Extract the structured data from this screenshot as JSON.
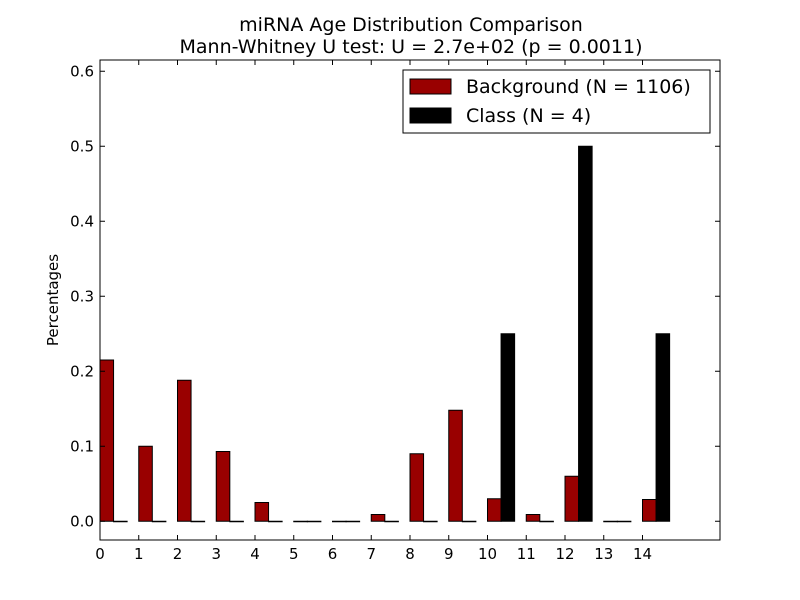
{
  "chart_data": {
    "type": "bar",
    "title": "miRNA Age Distribution Comparison",
    "subtitle": "Mann-Whitney U test: U = 2.7e+02 (p = 0.0011)",
    "xlabel": "",
    "ylabel": "Percentages",
    "categories": [
      "0",
      "1",
      "2",
      "3",
      "4",
      "5",
      "6",
      "7",
      "8",
      "9",
      "10",
      "11",
      "12",
      "13",
      "14"
    ],
    "xlim": [
      0,
      16
    ],
    "ylim": [
      -0.025,
      0.615
    ],
    "yticks": [
      "0.0",
      "0.1",
      "0.2",
      "0.3",
      "0.4",
      "0.5",
      "0.6"
    ],
    "grid": false,
    "legend": "top-right",
    "series": [
      {
        "name": "Background (N = 1106)",
        "color": "#990000",
        "values": [
          0.215,
          0.1,
          0.188,
          0.093,
          0.025,
          0.0,
          0.0,
          0.009,
          0.09,
          0.148,
          0.03,
          0.009,
          0.06,
          0.0,
          0.029
        ]
      },
      {
        "name": "Class (N = 4)",
        "color": "#000000",
        "values": [
          0.0,
          0.0,
          0.0,
          0.0,
          0.0,
          0.0,
          0.0,
          0.0,
          0.0,
          0.0,
          0.25,
          0.0,
          0.5,
          0.0,
          0.25
        ]
      }
    ]
  }
}
